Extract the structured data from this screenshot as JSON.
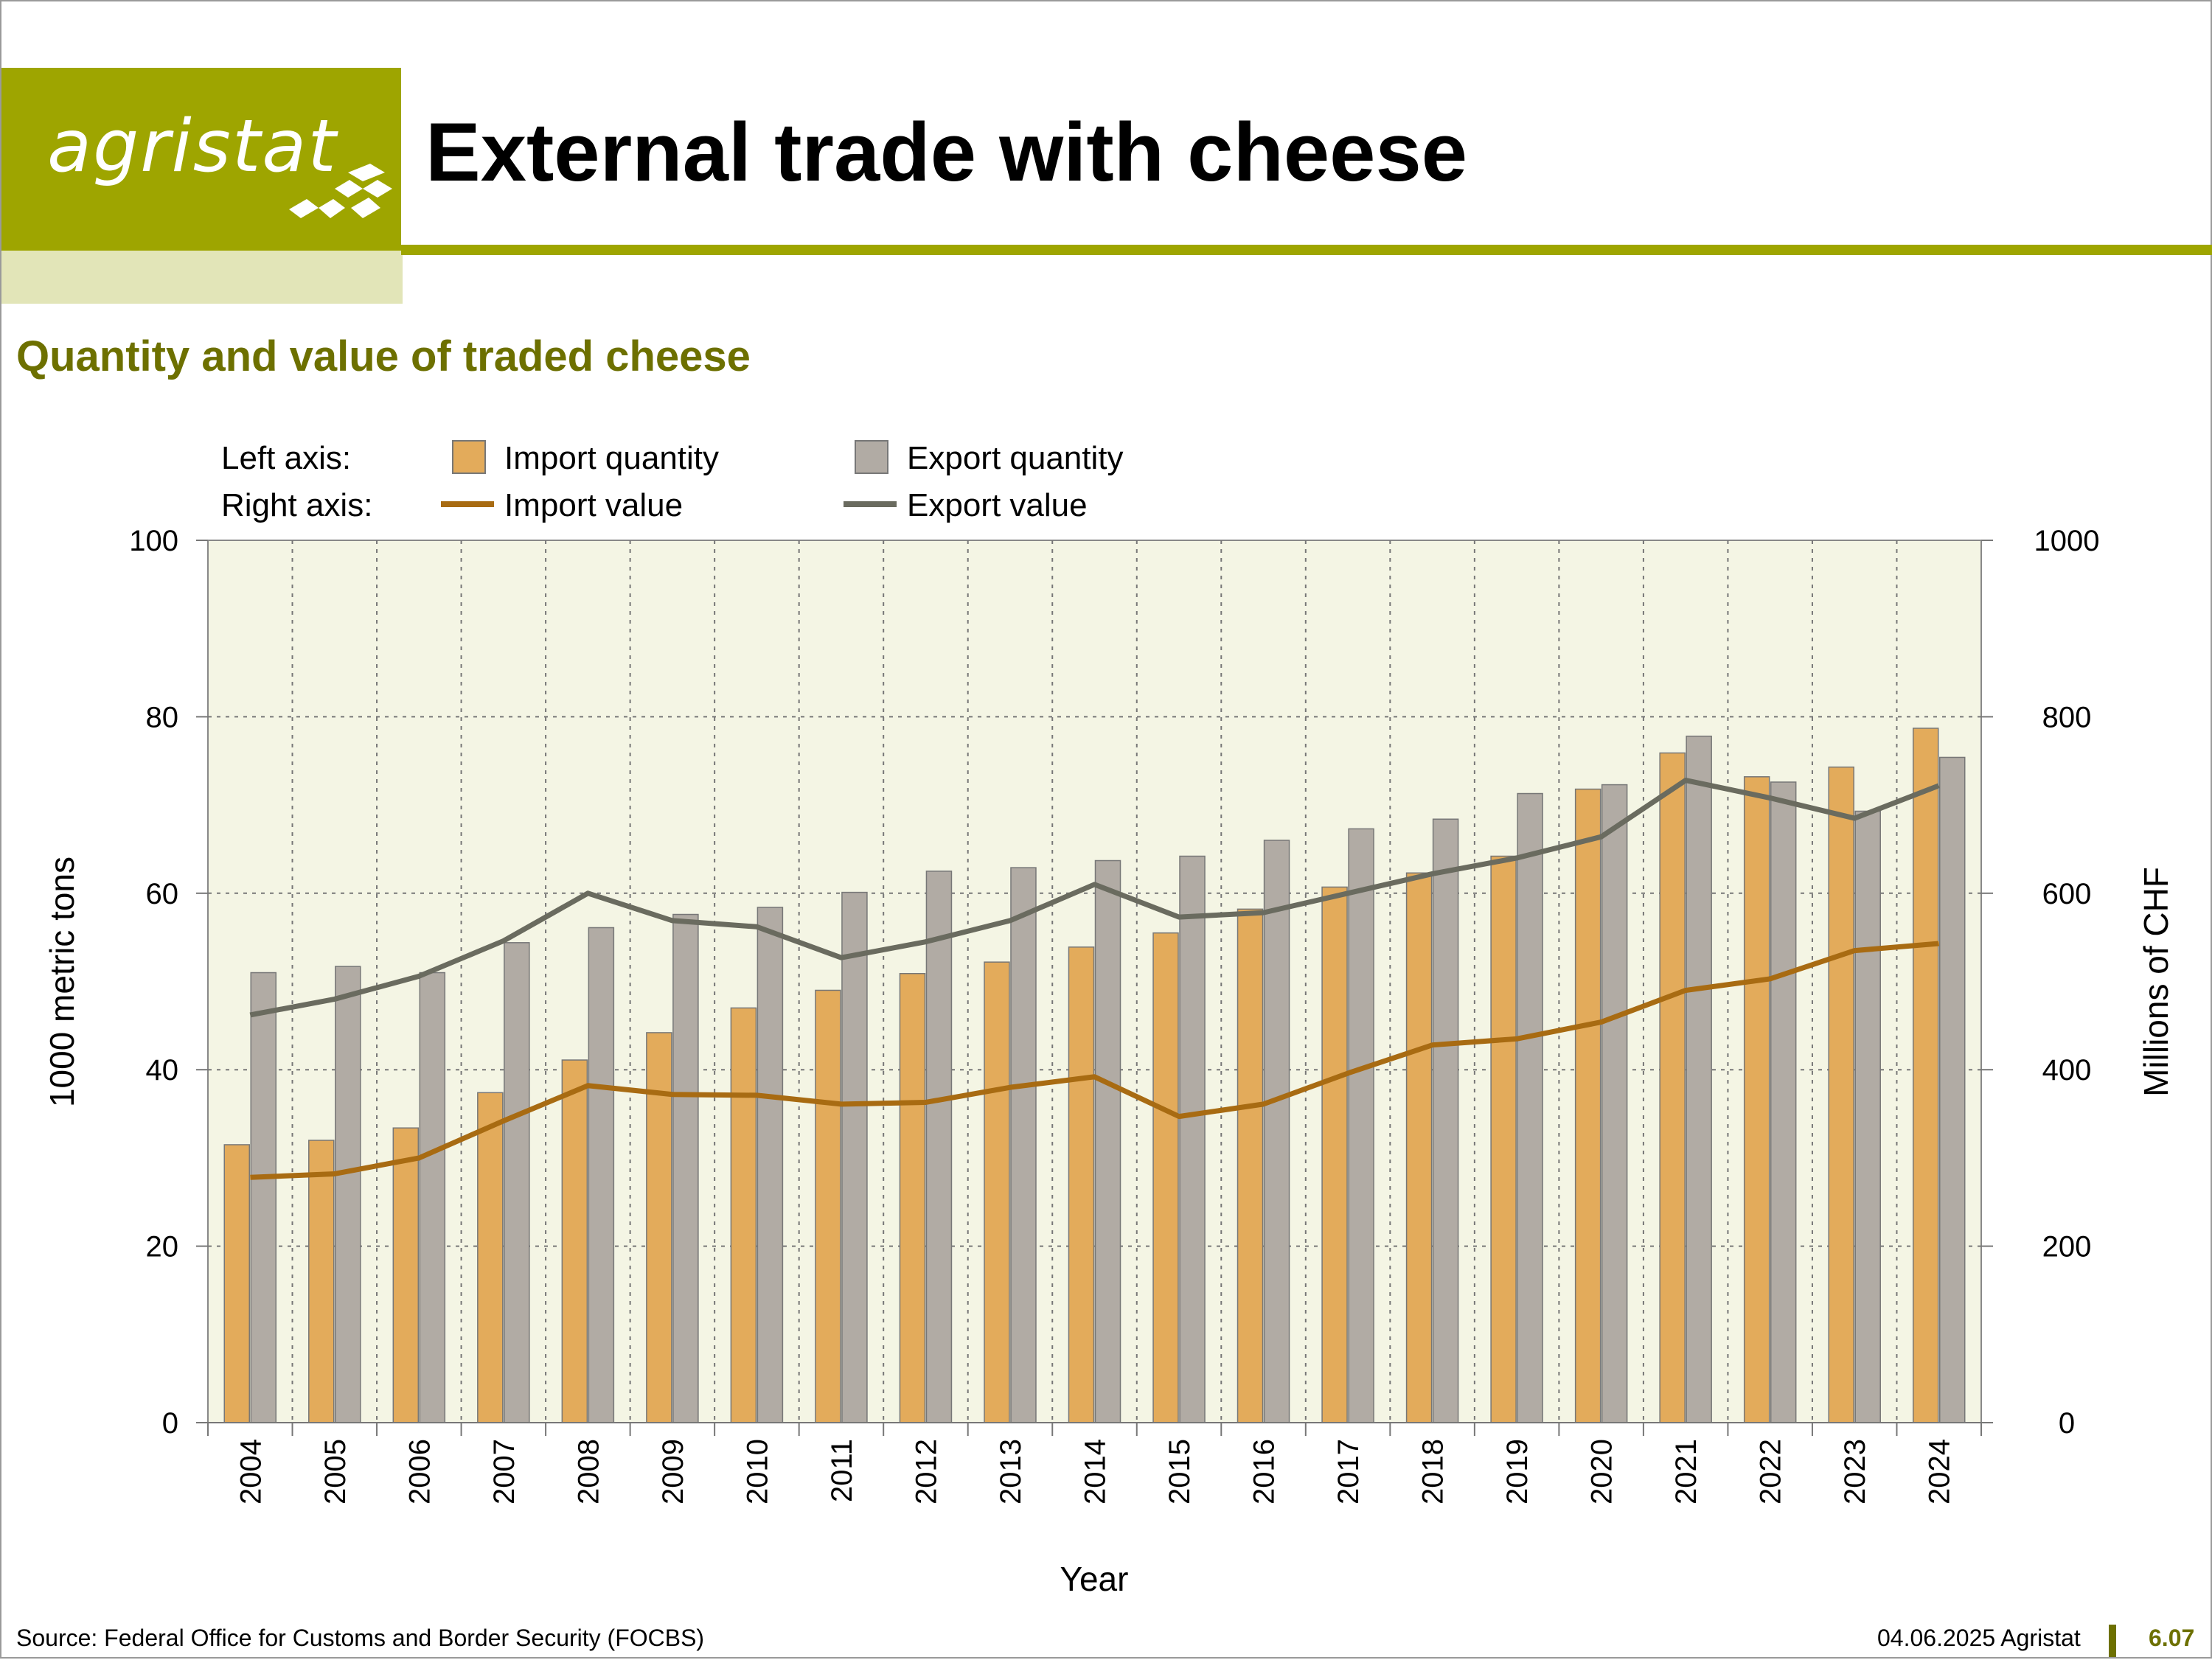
{
  "brand": {
    "name": "agristat",
    "color": "#9ea500",
    "light": "#e2e5b8",
    "dark": "#6d7000"
  },
  "title": "External trade with cheese",
  "subtitle": "Quantity and value of traded cheese",
  "footer": {
    "source": "Source: Federal Office for Customs and Border Security (FOCBS)",
    "date": "04.06.2025 Agristat",
    "page": "6.07"
  },
  "chart_data": {
    "type": "bar",
    "legend": {
      "left_label": "Left axis:",
      "right_label": "Right axis:",
      "placement": "top-left"
    },
    "categories": [
      "2004",
      "2005",
      "2006",
      "2007",
      "2008",
      "2009",
      "2010",
      "2011",
      "2012",
      "2013",
      "2014",
      "2015",
      "2016",
      "2017",
      "2018",
      "2019",
      "2020",
      "2021",
      "2022",
      "2023",
      "2024"
    ],
    "xlabel": "Year",
    "ylabel": "1000 metric tons",
    "y2label": "Millions of CHF",
    "ylim": [
      0,
      100
    ],
    "y2lim": [
      0,
      1000
    ],
    "yticks": [
      0,
      20,
      40,
      60,
      80,
      100
    ],
    "y2ticks": [
      0,
      200,
      400,
      600,
      800,
      1000
    ],
    "grid": true,
    "series": [
      {
        "name": "Import quantity",
        "type": "bar",
        "axis": "left",
        "color": "#e3ab5b",
        "values": [
          31.5,
          32.0,
          33.4,
          37.4,
          41.1,
          44.2,
          47.0,
          49.0,
          50.9,
          52.2,
          53.9,
          55.5,
          58.2,
          60.7,
          62.3,
          64.2,
          71.8,
          75.9,
          73.2,
          74.3,
          78.7
        ]
      },
      {
        "name": "Export quantity",
        "type": "bar",
        "axis": "left",
        "color": "#b1aba4",
        "values": [
          51.0,
          51.7,
          51.0,
          54.4,
          56.1,
          57.6,
          58.4,
          60.1,
          62.5,
          62.9,
          63.7,
          64.2,
          66.0,
          67.3,
          68.4,
          71.3,
          72.3,
          77.8,
          72.6,
          69.3,
          75.4
        ]
      },
      {
        "name": "Import value",
        "type": "line",
        "axis": "right",
        "color": "#a86b12",
        "values": [
          278,
          282,
          300,
          342,
          382,
          372,
          371,
          361,
          363,
          380,
          392,
          347,
          361,
          396,
          428,
          435,
          454,
          490,
          503,
          535,
          543
        ]
      },
      {
        "name": "Export value",
        "type": "line",
        "axis": "right",
        "color": "#6a6b5f",
        "values": [
          462,
          480,
          506,
          546,
          600,
          569,
          562,
          527,
          545,
          569,
          610,
          573,
          578,
          600,
          622,
          640,
          664,
          728,
          708,
          685,
          722
        ]
      }
    ]
  }
}
